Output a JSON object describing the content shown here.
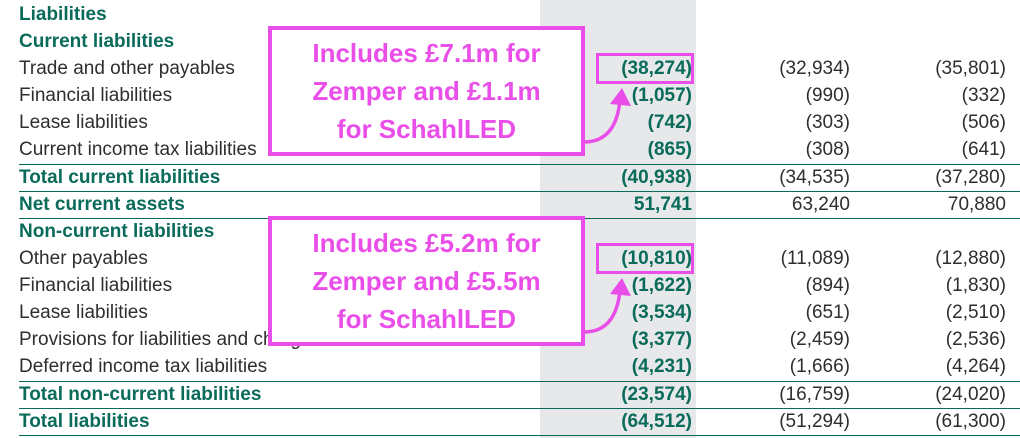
{
  "section_title": "Liabilities",
  "current_heading": "Current liabilities",
  "current_rows": [
    {
      "label": "Trade and other payables",
      "v1": "(38,274)",
      "v2": "(32,934)",
      "v3": "(35,801)"
    },
    {
      "label": "Financial liabilities",
      "v1": "(1,057)",
      "v2": "(990)",
      "v3": "(332)"
    },
    {
      "label": "Lease liabilities",
      "v1": "(742)",
      "v2": "(303)",
      "v3": "(506)"
    },
    {
      "label": "Current income tax liabilities",
      "v1": "(865)",
      "v2": "(308)",
      "v3": "(641)"
    }
  ],
  "total_current": {
    "label": "Total current liabilities",
    "v1": "(40,938)",
    "v2": "(34,535)",
    "v3": "(37,280)"
  },
  "net_current": {
    "label": "Net current assets",
    "v1": "51,741",
    "v2": "63,240",
    "v3": "70,880"
  },
  "noncurrent_heading": "Non-current liabilities",
  "noncurrent_rows": [
    {
      "label": "Other payables",
      "v1": "(10,810)",
      "v2": "(11,089)",
      "v3": "(12,880)"
    },
    {
      "label": "Financial liabilities",
      "v1": "(1,622)",
      "v2": "(894)",
      "v3": "(1,830)"
    },
    {
      "label": "Lease liabilities",
      "v1": "(3,534)",
      "v2": "(651)",
      "v3": "(2,510)"
    },
    {
      "label": "Provisions for liabilities and charges",
      "v1": "(3,377)",
      "v2": "(2,459)",
      "v3": "(2,536)"
    },
    {
      "label": "Deferred income tax liabilities",
      "v1": "(4,231)",
      "v2": "(1,666)",
      "v3": "(4,264)"
    }
  ],
  "total_noncurrent": {
    "label": "Total non-current liabilities",
    "v1": "(23,574)",
    "v2": "(16,759)",
    "v3": "(24,020)"
  },
  "total_liabilities": {
    "label": "Total liabilities",
    "v1": "(64,512)",
    "v2": "(51,294)",
    "v3": "(61,300)"
  },
  "callout_top": {
    "lines": [
      "Includes £7.1m for",
      "Zemper and £1.1m",
      "for SchahlLED"
    ]
  },
  "callout_bottom": {
    "lines": [
      "Includes £5.2m for",
      "Zemper and £5.5m",
      "for SchahlLED"
    ]
  },
  "colors": {
    "accent_green": "#0a6b5b",
    "highlight_magenta": "#e94ee9",
    "shaded_column": "#e6e8e9"
  }
}
